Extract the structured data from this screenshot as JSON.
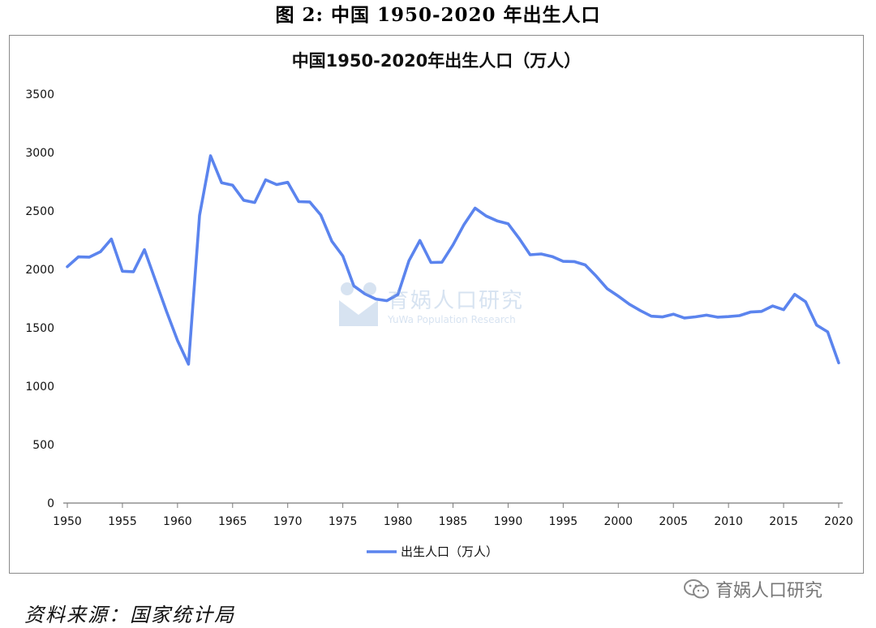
{
  "figure": {
    "caption": "图 2: 中国 1950-2020 年出生人口",
    "source": "资料来源：国家统计局",
    "wechat_label": "育娲人口研究",
    "watermark_title": "育娲人口研究",
    "watermark_subtitle": "YuWa Population Research"
  },
  "chart_data": {
    "type": "line",
    "title": "中国1950-2020年出生人口（万人）",
    "xlabel": "",
    "ylabel": "",
    "xlim": [
      1950,
      2020
    ],
    "ylim": [
      0,
      3500
    ],
    "x_ticks": [
      1950,
      1955,
      1960,
      1965,
      1970,
      1975,
      1980,
      1985,
      1990,
      1995,
      2000,
      2005,
      2010,
      2015,
      2020
    ],
    "y_ticks": [
      0,
      500,
      1000,
      1500,
      2000,
      2500,
      3000,
      3500
    ],
    "grid": false,
    "legend_position": "bottom",
    "color": "#5b84ee",
    "series": [
      {
        "name": "出生人口（万人）",
        "x": [
          1950,
          1951,
          1952,
          1953,
          1954,
          1955,
          1956,
          1957,
          1958,
          1959,
          1960,
          1961,
          1962,
          1963,
          1964,
          1965,
          1966,
          1967,
          1968,
          1969,
          1970,
          1971,
          1972,
          1973,
          1974,
          1975,
          1976,
          1977,
          1978,
          1979,
          1980,
          1981,
          1982,
          1983,
          1984,
          1985,
          1986,
          1987,
          1988,
          1989,
          1990,
          1991,
          1992,
          1993,
          1994,
          1995,
          1996,
          1997,
          1998,
          1999,
          2000,
          2001,
          2002,
          2003,
          2004,
          2005,
          2006,
          2007,
          2008,
          2009,
          2010,
          2011,
          2012,
          2013,
          2014,
          2015,
          2016,
          2017,
          2018,
          2019,
          2020
        ],
        "values": [
          2023,
          2107,
          2105,
          2151,
          2260,
          1984,
          1980,
          2169,
          1904,
          1640,
          1390,
          1188,
          2461,
          2972,
          2742,
          2720,
          2592,
          2572,
          2767,
          2726,
          2745,
          2580,
          2577,
          2465,
          2241,
          2115,
          1858,
          1791,
          1746,
          1732,
          1785,
          2074,
          2247,
          2059,
          2061,
          2210,
          2384,
          2524,
          2457,
          2415,
          2391,
          2265,
          2125,
          2132,
          2110,
          2069,
          2067,
          2038,
          1942,
          1834,
          1771,
          1702,
          1647,
          1599,
          1593,
          1617,
          1584,
          1594,
          1608,
          1591,
          1596,
          1604,
          1635,
          1640,
          1687,
          1655,
          1786,
          1723,
          1523,
          1465,
          1200
        ]
      }
    ]
  }
}
